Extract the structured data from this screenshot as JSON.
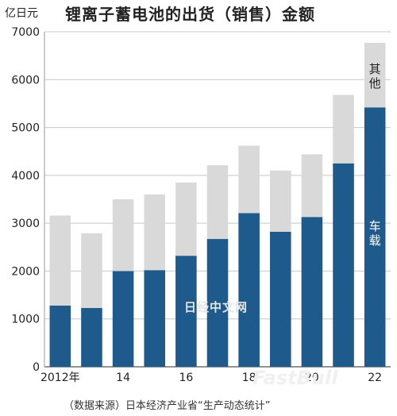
{
  "chart_data": {
    "type": "bar",
    "stacked": true,
    "title": "锂离子蓄电池的出货（销售）金额",
    "unit_label": "亿日元",
    "categories": [
      "2012",
      "13",
      "14",
      "15",
      "16",
      "17",
      "18",
      "19",
      "20",
      "21",
      "22"
    ],
    "x_tick_labels": [
      "2012年",
      "",
      "14",
      "",
      "16",
      "",
      "18",
      "",
      "20",
      "",
      "22"
    ],
    "ylim": [
      0,
      7000
    ],
    "y_ticks": [
      0,
      1000,
      2000,
      3000,
      4000,
      5000,
      6000,
      7000
    ],
    "grid": true,
    "series": [
      {
        "name": "车载",
        "color": "#1f5a8c",
        "values": [
          1280,
          1230,
          2000,
          2020,
          2320,
          2670,
          3210,
          2820,
          3130,
          4250,
          5420
        ]
      },
      {
        "name": "其他",
        "color": "#d9d9d9",
        "values": [
          1880,
          1560,
          1500,
          1580,
          1530,
          1540,
          1410,
          1280,
          1310,
          1430,
          1350
        ]
      }
    ],
    "source": "（数据来源）日本经济产业省“生产动态统计”"
  },
  "watermarks": [
    "日经中文网",
    "FastBull"
  ]
}
